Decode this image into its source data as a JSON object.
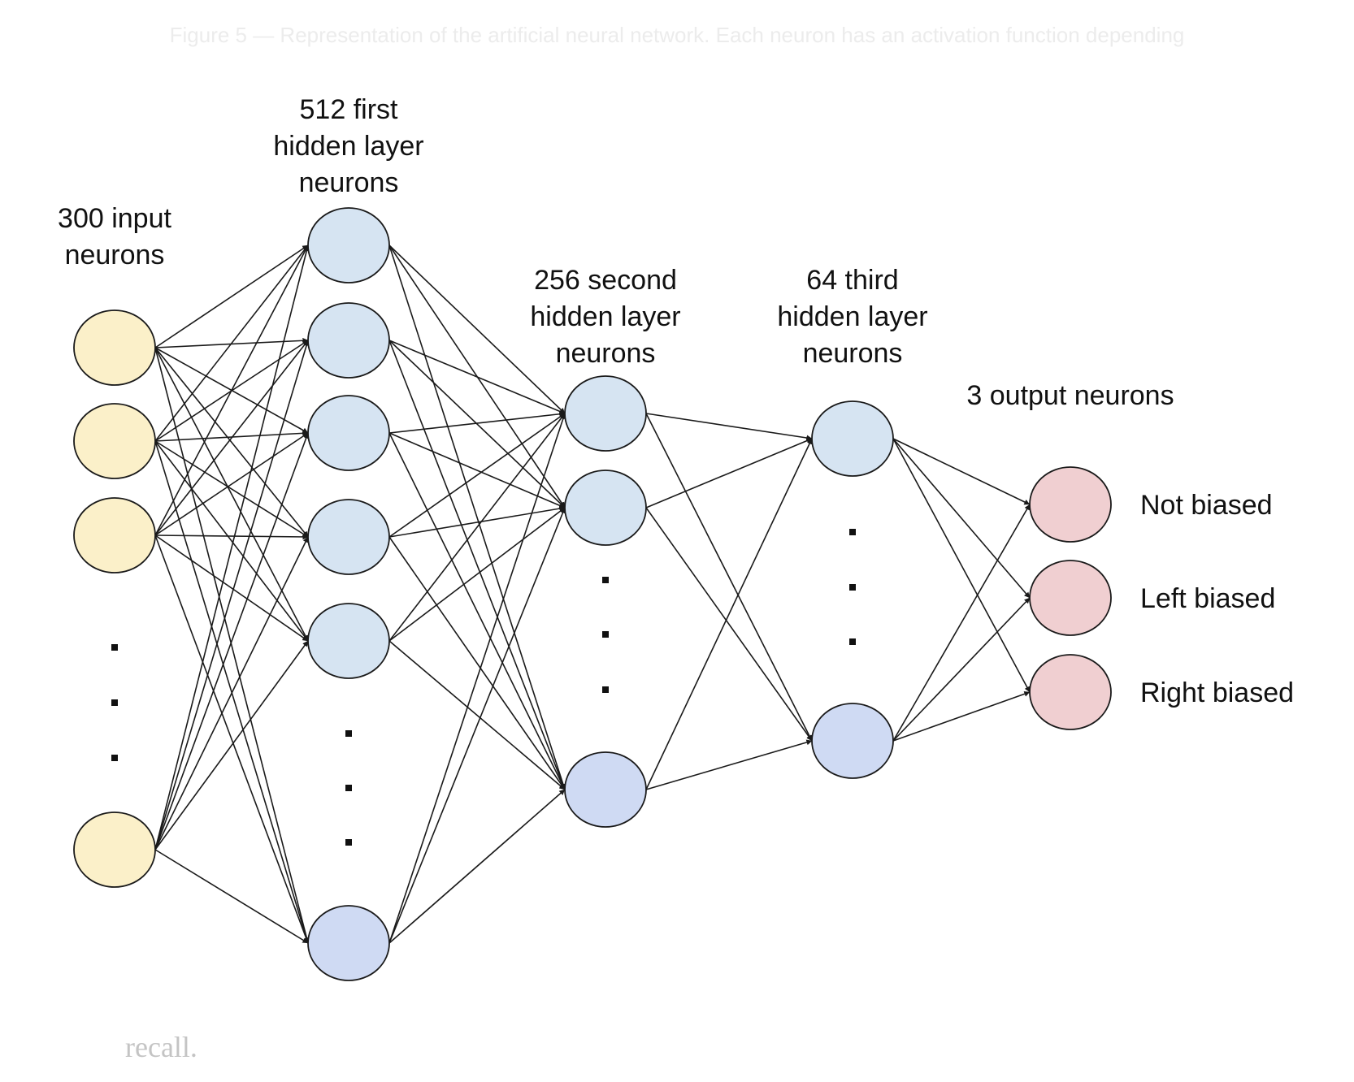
{
  "caption": "Figure 5 — Representation of the artificial neural network. Each neuron has an activation function depending",
  "body_text": "recall.",
  "layers": [
    {
      "label": "300 input neurons",
      "label_lines": [
        "300 input",
        "neurons"
      ],
      "fill": "#fbf0c9"
    },
    {
      "label": "512 first hidden layer neurons",
      "label_lines": [
        "512 first",
        "hidden layer",
        "neurons"
      ],
      "fill": "#d6e4f2"
    },
    {
      "label": "256 second hidden layer neurons",
      "label_lines": [
        "256 second",
        "hidden layer",
        "neurons"
      ],
      "fill": "#d6e4f2"
    },
    {
      "label": "64 third hidden layer neurons",
      "label_lines": [
        "64 third",
        "hidden layer",
        "neurons"
      ],
      "fill": "#d6e4f2"
    },
    {
      "label": "3 output neurons",
      "label_lines": [
        "3 output neurons"
      ],
      "fill": "#f0cfd1"
    }
  ],
  "outputs": [
    "Not biased",
    "Left biased",
    "Right biased"
  ],
  "colors": {
    "stroke": "#1a1a1a",
    "last_hidden_fill": "#cfdaf3"
  }
}
